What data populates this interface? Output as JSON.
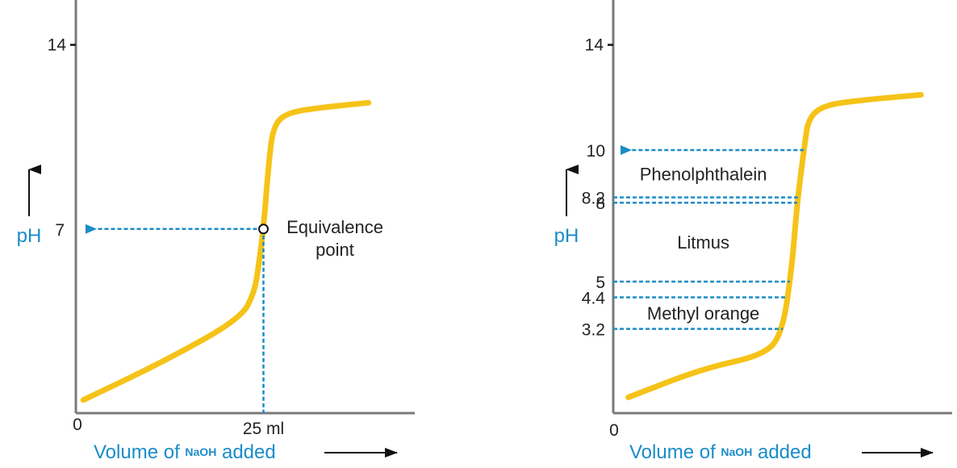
{
  "colors": {
    "axis": "#7a7a7a",
    "curve": "#f5c318",
    "guide": "#1a8cc8",
    "text": "#222222",
    "arrow": "#111111"
  },
  "chart_data": [
    {
      "type": "line",
      "xlabel_parts": [
        "Volume of",
        "NaOH",
        "added"
      ],
      "ylabel": "pH",
      "x_origin_label": "0",
      "y_ticks": [
        {
          "value": 14,
          "label": "14"
        }
      ],
      "y_labels": [
        {
          "value": 7,
          "label": "7"
        }
      ],
      "x_labels": [
        {
          "value": 25,
          "label": "25 ml"
        }
      ],
      "annotations": [
        {
          "text": "Equivalence",
          "x": 25,
          "y": 7
        },
        {
          "text": "point",
          "x": 25,
          "y": 7
        }
      ],
      "equivalence_point": {
        "x": 25,
        "y": 7
      },
      "xlim": [
        0,
        43
      ],
      "ylim": [
        0,
        16.2
      ],
      "curve": {
        "x": [
          1,
          12,
          22,
          23.8,
          24.3,
          25,
          25.7,
          26.3,
          28,
          32,
          39
        ],
        "y": [
          0.5,
          2,
          3.6,
          4.6,
          5.5,
          7,
          9.5,
          10.9,
          11.4,
          11.6,
          11.8
        ]
      }
    },
    {
      "type": "line",
      "xlabel_parts": [
        "Volume of",
        "NaOH",
        "added"
      ],
      "ylabel": "pH",
      "x_origin_label": "0",
      "y_ticks": [
        {
          "value": 14,
          "label": "14"
        }
      ],
      "y_labels": [
        {
          "value": 10,
          "label": "10"
        },
        {
          "value": 8.2,
          "label": "8.2"
        },
        {
          "value": 8,
          "label": "8"
        },
        {
          "value": 5,
          "label": "5"
        },
        {
          "value": 4.4,
          "label": "4.4"
        },
        {
          "value": 3.2,
          "label": "3.2"
        }
      ],
      "indicator_ranges": [
        {
          "name": "Phenolphthalein",
          "low": 8.2,
          "high": 10
        },
        {
          "name": "Litmus",
          "low": 5,
          "high": 8
        },
        {
          "name": "Methyl orange",
          "low": 3.2,
          "high": 4.4
        }
      ],
      "xlim": [
        0,
        43
      ],
      "ylim": [
        0,
        16.2
      ],
      "curve": {
        "x": [
          2,
          12,
          20,
          22.5,
          23.8,
          24.5,
          25.5,
          26,
          28,
          33,
          41
        ],
        "y": [
          0.6,
          1.7,
          2.2,
          3,
          5.5,
          8,
          10.2,
          11.2,
          11.7,
          11.9,
          12.1
        ]
      }
    }
  ]
}
